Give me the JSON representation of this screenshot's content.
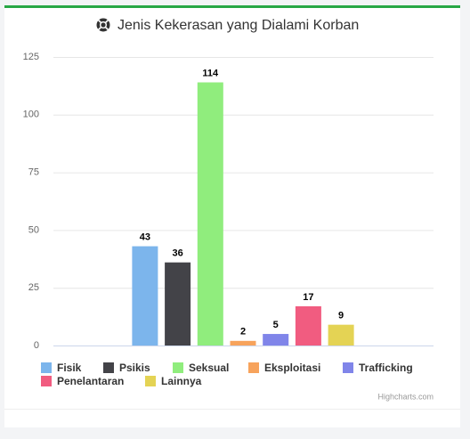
{
  "chart_data": {
    "type": "bar",
    "title": "Jenis Kekerasan yang Dialami Korban",
    "categories": [
      null
    ],
    "series": [
      {
        "name": "Fisik",
        "color": "#7cb5ec",
        "values": [
          43
        ]
      },
      {
        "name": "Psikis",
        "color": "#434348",
        "values": [
          36
        ]
      },
      {
        "name": "Seksual",
        "color": "#90ed7d",
        "values": [
          114
        ]
      },
      {
        "name": "Eksploitasi",
        "color": "#f7a35c",
        "values": [
          2
        ]
      },
      {
        "name": "Trafficking",
        "color": "#8085e9",
        "values": [
          5
        ]
      },
      {
        "name": "Penelantaran",
        "color": "#f15c80",
        "values": [
          17
        ]
      },
      {
        "name": "Lainnya",
        "color": "#e4d354",
        "values": [
          9
        ]
      }
    ],
    "ylim": [
      0,
      125
    ],
    "yticks": [
      0,
      25,
      50,
      75,
      100,
      125
    ],
    "grid": true,
    "legend": "bottom",
    "credits": "Highcharts.com"
  }
}
